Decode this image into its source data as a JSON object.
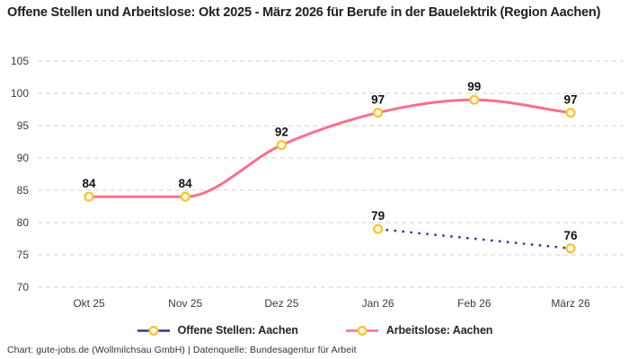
{
  "header": {
    "title": "Offene Stellen und Arbeitslose: Okt 2025 - März 2026 für Berufe in der Bauelektrik (Region Aachen)"
  },
  "footer": {
    "credit": "Chart: gute-jobs.de (Wollmilchsau GmbH) | Datenquelle: Bundesagentur für Arbeit"
  },
  "colors": {
    "open_positions_line": "#2b3a94",
    "unemployed_line": "#f8708c",
    "marker_ring": "#fdc431",
    "grid_line": "#d2d2d2",
    "axis_text": "#3c3c3c",
    "data_label_text": "#141414"
  },
  "chart_data": {
    "type": "line",
    "title": "Offene Stellen und Arbeitslose: Okt 2025 - März 2026 für Berufe in der Bauelektrik (Region Aachen)",
    "categories": [
      "Okt 25",
      "Nov 25",
      "Dez 25",
      "Jan 26",
      "Feb 26",
      "März 26"
    ],
    "series": [
      {
        "name": "Offene Stellen: Aachen",
        "values": [
          null,
          null,
          null,
          79,
          null,
          76
        ],
        "style": "dotted",
        "color": "#2b3a94"
      },
      {
        "name": "Arbeitslose: Aachen",
        "values": [
          84,
          84,
          92,
          97,
          99,
          97
        ],
        "style": "solid",
        "color": "#f8708c"
      }
    ],
    "ylim": [
      70,
      105
    ],
    "yticks": [
      70,
      75,
      80,
      85,
      90,
      95,
      100,
      105
    ],
    "grid": "horizontal-dashed",
    "legend_position": "bottom",
    "marker": "yellow-ring-white-fill",
    "data_labels": true
  }
}
